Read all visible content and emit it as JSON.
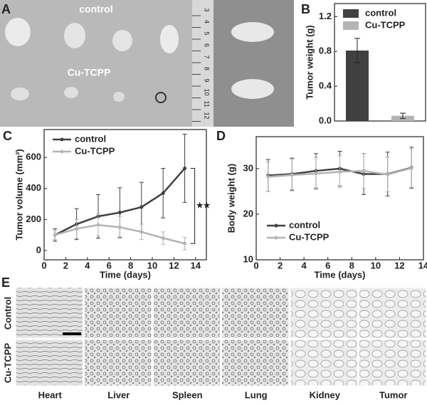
{
  "panel_labels": [
    "A",
    "B",
    "C",
    "D",
    "E"
  ],
  "photo_labels": [
    "control",
    "Cu-TCPP"
  ],
  "ruler": [
    "3",
    "4",
    "5",
    "6",
    "7",
    "8",
    "9",
    "10",
    "11",
    "12"
  ],
  "histology": {
    "rows": [
      "Control",
      "Cu-TCPP"
    ],
    "organs": [
      "Heart",
      "Liver",
      "Spleen",
      "Lung",
      "Kidney",
      "Tumor"
    ]
  },
  "chart_data": [
    {
      "type": "bar",
      "ylabel": "Tumor weight (g)",
      "ylim": [
        0,
        1.35
      ],
      "yticks": [
        {
          "value": 0,
          "label": "0.0"
        },
        0.4,
        0.8,
        1.2
      ],
      "legend": "upper left",
      "series": [
        {
          "name": "control",
          "color": "#404040",
          "values": [
            0.81
          ],
          "errors": [
            0.14
          ]
        },
        {
          "name": "Cu-TCPP",
          "color": "#b4b4b4",
          "values": [
            0.06
          ],
          "errors": [
            0.03
          ]
        }
      ]
    },
    {
      "type": "line",
      "xlabel": "Time (days)",
      "ylabel": "Tumor volume (mm³)",
      "annotation": "★★",
      "x": [
        1,
        3,
        5,
        7,
        9,
        11,
        13
      ],
      "xlim": [
        0,
        15
      ],
      "xticks": [
        0,
        2,
        4,
        6,
        8,
        10,
        12,
        14
      ],
      "ylim": [
        -60,
        780
      ],
      "yticks": [
        0,
        200,
        400,
        600
      ],
      "legend": "upper left",
      "series": [
        {
          "name": "control",
          "color": "#404040",
          "values": [
            100,
            170,
            220,
            245,
            280,
            370,
            530
          ],
          "errors": [
            40,
            100,
            140,
            160,
            160,
            160,
            220
          ]
        },
        {
          "name": "Cu-TCPP",
          "color": "#b4b4b4",
          "values": [
            100,
            140,
            165,
            150,
            120,
            80,
            45
          ],
          "errors": [
            30,
            60,
            70,
            70,
            50,
            40,
            40
          ]
        }
      ]
    },
    {
      "type": "line",
      "xlabel": "Time (days)",
      "ylabel": "Body weight (g)",
      "x": [
        1,
        3,
        5,
        7,
        9,
        11,
        13
      ],
      "xlim": [
        0,
        14
      ],
      "xticks": [
        0,
        2,
        4,
        6,
        8,
        10,
        12,
        14
      ],
      "ylim": [
        10,
        37
      ],
      "yticks": [
        10,
        20,
        30
      ],
      "legend": "lower center",
      "series": [
        {
          "name": "control",
          "color": "#404040",
          "values": [
            28.5,
            28.8,
            29.5,
            30,
            28.8,
            28.8,
            30.2
          ],
          "errors": [
            3.5,
            3.5,
            3.8,
            3.8,
            4.5,
            4.8,
            4.5
          ]
        },
        {
          "name": "Cu-TCPP",
          "color": "#b4b4b4",
          "values": [
            28.2,
            28.6,
            28.9,
            29.3,
            29.5,
            28.7,
            30.1
          ],
          "errors": [
            3.2,
            3.5,
            3.5,
            3.5,
            3.8,
            3.8,
            4.2
          ]
        }
      ]
    }
  ]
}
